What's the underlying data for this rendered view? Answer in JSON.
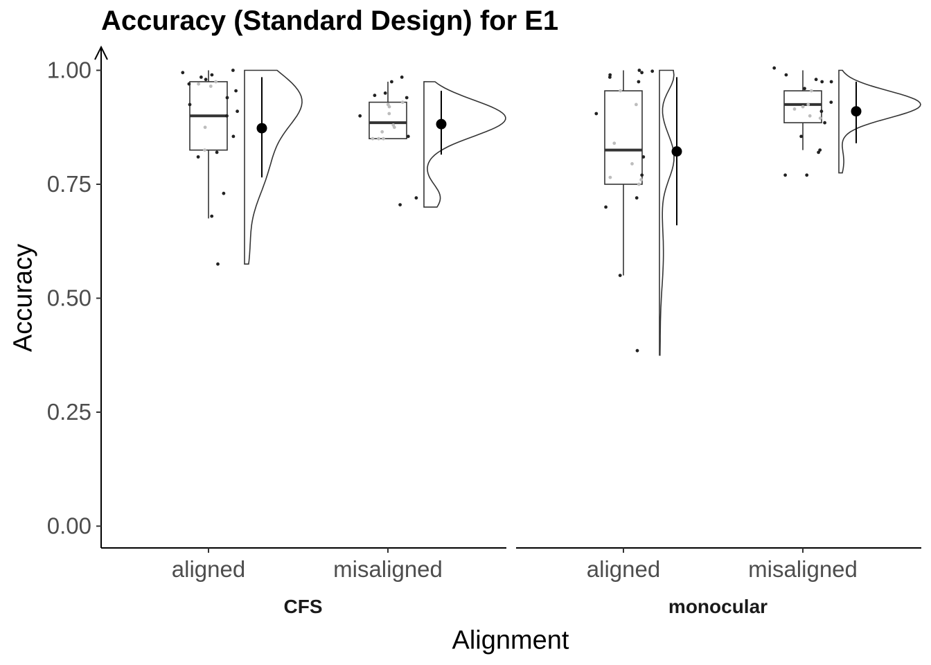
{
  "chart_data": {
    "type": "raincloud",
    "title": "Accuracy (Standard Design) for E1",
    "xlabel": "Alignment",
    "ylabel": "Accuracy",
    "ylim": [
      -0.05,
      1.0
    ],
    "y_ticks": [
      "0.00",
      "0.25",
      "0.50",
      "0.75",
      "1.00"
    ],
    "y_tick_values": [
      0,
      0.25,
      0.5,
      0.75,
      1.0
    ],
    "categories": [
      "aligned",
      "misaligned"
    ],
    "grid": false,
    "facets": [
      {
        "name": "CFS",
        "groups": [
          {
            "category": "aligned",
            "box": {
              "min": 0.675,
              "q1": 0.825,
              "median": 0.9,
              "q3": 0.975,
              "max": 1.0
            },
            "mean": 0.873,
            "ci": [
              0.765,
              0.985
            ],
            "points": [
              1.0,
              0.995,
              0.99,
              0.985,
              0.98,
              0.975,
              0.97,
              0.97,
              0.965,
              0.955,
              0.94,
              0.925,
              0.91,
              0.9,
              0.875,
              0.855,
              0.825,
              0.82,
              0.81,
              0.73,
              0.68,
              0.575
            ],
            "density": {
              "min": 0.575,
              "max": 1.0
            }
          },
          {
            "category": "misaligned",
            "box": {
              "min": 0.85,
              "q1": 0.85,
              "median": 0.885,
              "q3": 0.93,
              "max": 0.975
            },
            "mean": 0.882,
            "ci": [
              0.815,
              0.955
            ],
            "points": [
              0.985,
              0.975,
              0.95,
              0.945,
              0.94,
              0.93,
              0.925,
              0.92,
              0.905,
              0.9,
              0.88,
              0.875,
              0.865,
              0.855,
              0.85,
              0.85,
              0.85,
              0.72,
              0.705
            ],
            "density": {
              "min": 0.7,
              "max": 0.975
            }
          }
        ]
      },
      {
        "name": "monocular",
        "groups": [
          {
            "category": "aligned",
            "box": {
              "min": 0.55,
              "q1": 0.75,
              "median": 0.825,
              "q3": 0.955,
              "max": 1.0
            },
            "mean": 0.822,
            "ci": [
              0.66,
              0.985
            ],
            "points": [
              1.0,
              0.998,
              0.995,
              0.99,
              0.985,
              0.975,
              0.955,
              0.925,
              0.905,
              0.84,
              0.81,
              0.795,
              0.77,
              0.765,
              0.76,
              0.75,
              0.72,
              0.7,
              0.55,
              0.385
            ],
            "density": {
              "min": 0.375,
              "max": 1.0
            }
          },
          {
            "category": "misaligned",
            "box": {
              "min": 0.825,
              "q1": 0.885,
              "median": 0.925,
              "q3": 0.955,
              "max": 1.0
            },
            "mean": 0.91,
            "ci": [
              0.84,
              0.975
            ],
            "points": [
              1.005,
              0.99,
              0.98,
              0.975,
              0.975,
              0.96,
              0.955,
              0.93,
              0.925,
              0.92,
              0.915,
              0.91,
              0.9,
              0.895,
              0.885,
              0.855,
              0.825,
              0.82,
              0.77,
              0.77
            ],
            "density": {
              "min": 0.775,
              "max": 1.0
            }
          }
        ]
      }
    ]
  }
}
